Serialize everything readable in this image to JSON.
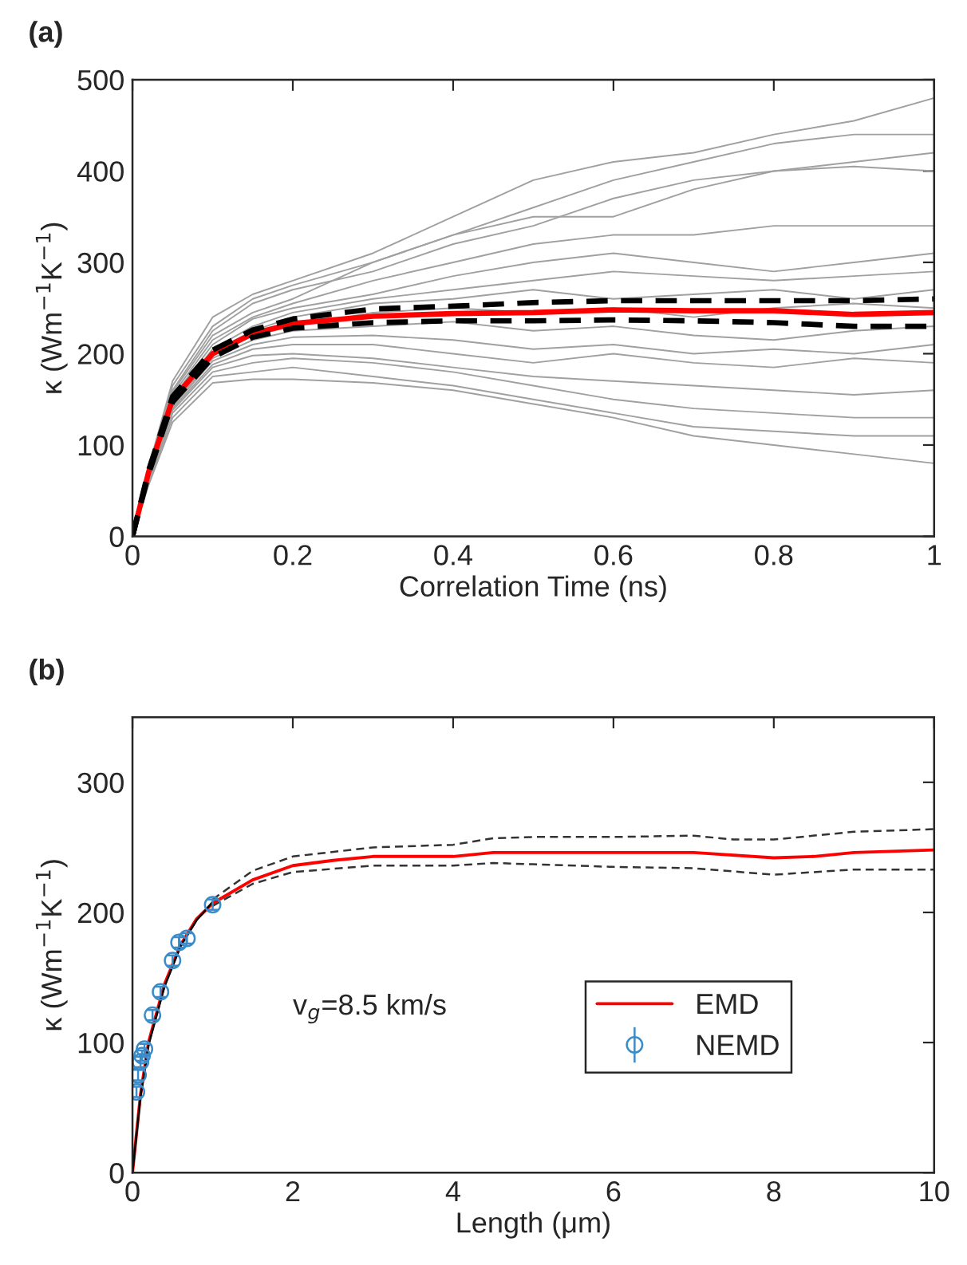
{
  "chart_data": [
    {
      "type": "line",
      "xlabel": "Correlation Time (ns)",
      "ylabel": "κ (Wm$^{−1}$K$^{−1}$)",
      "annotations": [
        "(a)"
      ],
      "xlim": [
        0,
        1
      ],
      "ylim": [
        0,
        500
      ],
      "xticks": [
        0,
        0.2,
        0.4,
        0.6,
        0.8,
        1
      ],
      "yticks": [
        0,
        100,
        200,
        300,
        400,
        500
      ],
      "grid": false,
      "legend": false,
      "x": [
        0,
        0.02,
        0.05,
        0.1,
        0.15,
        0.2,
        0.3,
        0.4,
        0.5,
        0.6,
        0.7,
        0.8,
        0.9,
        1
      ],
      "series": [
        {
          "color": "#a0a0a0",
          "values": [
            0,
            75,
            170,
            240,
            265,
            280,
            310,
            350,
            390,
            410,
            420,
            440,
            455,
            480
          ]
        },
        {
          "color": "#a0a0a0",
          "values": [
            0,
            72,
            165,
            230,
            260,
            275,
            300,
            330,
            360,
            390,
            410,
            430,
            440,
            440
          ]
        },
        {
          "color": "#a0a0a0",
          "values": [
            0,
            70,
            160,
            225,
            255,
            270,
            290,
            320,
            340,
            370,
            390,
            400,
            410,
            420
          ]
        },
        {
          "color": "#a0a0a0",
          "values": [
            0,
            70,
            158,
            220,
            245,
            260,
            300,
            330,
            350,
            350,
            380,
            400,
            405,
            400
          ]
        },
        {
          "color": "#a0a0a0",
          "values": [
            0,
            68,
            155,
            215,
            240,
            255,
            280,
            300,
            320,
            330,
            330,
            340,
            340,
            340
          ]
        },
        {
          "color": "#a0a0a0",
          "values": [
            0,
            68,
            152,
            210,
            238,
            250,
            265,
            285,
            300,
            310,
            300,
            290,
            300,
            310
          ]
        },
        {
          "color": "#a0a0a0",
          "values": [
            0,
            66,
            150,
            205,
            230,
            245,
            260,
            270,
            280,
            290,
            285,
            280,
            285,
            290
          ]
        },
        {
          "color": "#a0a0a0",
          "values": [
            0,
            66,
            148,
            202,
            225,
            240,
            255,
            260,
            270,
            260,
            265,
            270,
            260,
            270
          ]
        },
        {
          "color": "#a0a0a0",
          "values": [
            0,
            65,
            146,
            200,
            220,
            230,
            245,
            250,
            245,
            250,
            240,
            250,
            255,
            250
          ]
        },
        {
          "color": "#a0a0a0",
          "values": [
            0,
            64,
            144,
            195,
            215,
            225,
            230,
            235,
            225,
            230,
            220,
            215,
            225,
            230
          ]
        },
        {
          "color": "#a0a0a0",
          "values": [
            0,
            63,
            142,
            192,
            210,
            218,
            220,
            215,
            205,
            210,
            200,
            205,
            200,
            210
          ]
        },
        {
          "color": "#a0a0a0",
          "values": [
            0,
            62,
            140,
            188,
            205,
            210,
            210,
            200,
            190,
            200,
            190,
            185,
            195,
            190
          ]
        },
        {
          "color": "#a0a0a0",
          "values": [
            0,
            61,
            138,
            185,
            198,
            200,
            195,
            185,
            175,
            170,
            165,
            160,
            155,
            160
          ]
        },
        {
          "color": "#a0a0a0",
          "values": [
            0,
            60,
            135,
            180,
            190,
            195,
            190,
            180,
            165,
            150,
            140,
            135,
            130,
            130
          ]
        },
        {
          "color": "#a0a0a0",
          "values": [
            0,
            58,
            130,
            175,
            180,
            185,
            175,
            165,
            150,
            135,
            120,
            115,
            110,
            110
          ]
        },
        {
          "color": "#a0a0a0",
          "values": [
            0,
            56,
            125,
            168,
            172,
            172,
            168,
            160,
            145,
            130,
            110,
            100,
            90,
            80
          ]
        },
        {
          "color": "#ff0000",
          "line_style": "solid",
          "values": [
            0,
            70,
            150,
            200,
            222,
            233,
            241,
            244,
            245,
            248,
            247,
            247,
            243,
            245
          ]
        },
        {
          "color": "#000000",
          "line_style": "dashed",
          "values": [
            0,
            72,
            153,
            204,
            226,
            238,
            249,
            252,
            256,
            258,
            258,
            258,
            258,
            260
          ]
        },
        {
          "color": "#000000",
          "line_style": "dashed",
          "values": [
            0,
            68,
            147,
            196,
            218,
            228,
            234,
            236,
            236,
            237,
            236,
            234,
            230,
            230
          ]
        }
      ]
    },
    {
      "type": "line",
      "xlabel": "Length (μm)",
      "ylabel": "κ (Wm$^{−1}$K$^{−1}$)",
      "annotations": [
        "(b)",
        "v$_{g}$=8.5 km/s"
      ],
      "xlim": [
        0,
        10
      ],
      "ylim": [
        0,
        350
      ],
      "xticks": [
        0,
        2,
        4,
        6,
        8,
        10
      ],
      "yticks": [
        0,
        100,
        200,
        300
      ],
      "grid": false,
      "legend": "right",
      "series": [
        {
          "name": "EMD",
          "color": "#ff0000",
          "line_style": "solid",
          "x": [
            0,
            0.1,
            0.2,
            0.4,
            0.6,
            0.8,
            1,
            1.5,
            2,
            2.5,
            3,
            3.5,
            4,
            4.5,
            5,
            6,
            7,
            8,
            8.5,
            9,
            10
          ],
          "values": [
            0,
            60,
            100,
            145,
            175,
            195,
            207,
            225,
            236,
            240,
            243,
            243,
            243,
            246,
            246,
            246,
            246,
            242,
            243,
            246,
            248
          ]
        },
        {
          "color": "#333333",
          "line_style": "dashed",
          "x": [
            1,
            1.5,
            2,
            3,
            4,
            4.5,
            5,
            6,
            7,
            7.5,
            8,
            9,
            10
          ],
          "values": [
            210,
            232,
            243,
            250,
            252,
            257,
            258,
            258,
            259,
            256,
            256,
            262,
            264
          ]
        },
        {
          "color": "#333333",
          "line_style": "dashed",
          "x": [
            1,
            1.5,
            2,
            3,
            4,
            4.5,
            5,
            6,
            7,
            8,
            9,
            10
          ],
          "values": [
            205,
            222,
            231,
            236,
            236,
            238,
            237,
            235,
            234,
            229,
            233,
            233
          ]
        },
        {
          "color": "#000000",
          "line_style": "solid",
          "x": [
            0,
            0.1,
            0.2,
            0.4,
            0.6,
            0.8,
            1
          ],
          "values": [
            0,
            58,
            98,
            143,
            174,
            194,
            208
          ]
        },
        {
          "name": "NEMD",
          "type": "scatter",
          "marker": "circle",
          "color": "#3a8cc8",
          "x": [
            0.05,
            0.07,
            0.1,
            0.12,
            0.15,
            0.25,
            0.35,
            0.5,
            0.58,
            0.68,
            1.0
          ],
          "values": [
            62,
            75,
            85,
            90,
            95,
            121,
            139,
            163,
            177,
            180,
            206
          ],
          "errors": [
            4,
            4,
            4,
            4,
            4,
            4,
            4,
            4,
            4,
            4,
            4
          ]
        }
      ]
    }
  ]
}
